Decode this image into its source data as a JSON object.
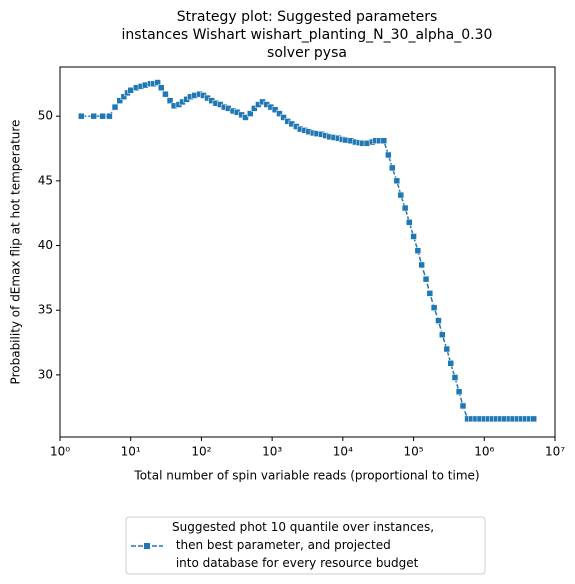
{
  "chart_data": {
    "type": "line",
    "title": [
      "Strategy plot: Suggested parameters",
      "instances Wishart wishart_planting_N_30_alpha_0.30",
      "solver pysa"
    ],
    "xlabel": "Total number of spin variable reads (proportional to time)",
    "ylabel": "Probability of dEmax flip at hot temperature",
    "log_x": true,
    "xlim": [
      1,
      10000000
    ],
    "ylim": [
      25.2,
      53.8
    ],
    "xticks": [
      {
        "value": 1,
        "label": "10⁰"
      },
      {
        "value": 10,
        "label": "10¹"
      },
      {
        "value": 100,
        "label": "10²"
      },
      {
        "value": 1000,
        "label": "10³"
      },
      {
        "value": 10000,
        "label": "10⁴"
      },
      {
        "value": 100000,
        "label": "10⁵"
      },
      {
        "value": 1000000,
        "label": "10⁶"
      },
      {
        "value": 10000000,
        "label": "10⁷"
      }
    ],
    "yticks": [
      30,
      35,
      40,
      45,
      50
    ],
    "legend": "bottom-outside",
    "x": [
      2,
      3,
      4,
      5,
      6,
      7,
      8,
      9,
      10,
      12,
      14,
      16,
      19,
      21,
      24,
      27,
      31,
      36,
      41,
      48,
      54,
      62,
      70,
      80,
      94,
      107,
      122,
      140,
      160,
      185,
      210,
      240,
      280,
      320,
      370,
      420,
      490,
      560,
      640,
      730,
      840,
      960,
      1100,
      1270,
      1450,
      1660,
      1900,
      2200,
      2500,
      2900,
      3300,
      3800,
      4300,
      5000,
      5700,
      6500,
      7500,
      8600,
      9800,
      11000,
      13000,
      15000,
      17000,
      19000,
      22000,
      26000,
      29000,
      33000,
      38000,
      44000,
      50000,
      58000,
      66000,
      76000,
      87000,
      100000,
      115000,
      130000,
      150000,
      170000,
      195000,
      225000,
      255000,
      295000,
      335000,
      385000,
      440000,
      500000,
      580000,
      660000,
      760000,
      870000,
      1000000,
      1150000,
      1300000,
      1500000,
      1700000,
      1950000,
      2250000,
      2550000,
      2950000,
      3350000,
      3850000,
      4400000,
      5000000
    ],
    "series": [
      {
        "name": "Suggested phot 10 quantile over instances,\n then best parameter, and projected\n into database for every resource budget",
        "color": "#1f77b4",
        "values": [
          50,
          50,
          50,
          50,
          50.7,
          51.2,
          51.5,
          51.8,
          52.0,
          52.2,
          52.3,
          52.4,
          52.5,
          52.5,
          52.6,
          52.2,
          51.7,
          51.2,
          50.8,
          50.9,
          51.1,
          51.3,
          51.5,
          51.6,
          51.7,
          51.6,
          51.4,
          51.2,
          51.0,
          50.9,
          50.7,
          50.6,
          50.4,
          50.3,
          50.1,
          49.9,
          50.2,
          50.6,
          50.9,
          51.1,
          50.9,
          50.7,
          50.5,
          50.2,
          49.9,
          49.6,
          49.4,
          49.2,
          49.0,
          48.9,
          48.8,
          48.7,
          48.65,
          48.6,
          48.5,
          48.4,
          48.35,
          48.3,
          48.2,
          48.15,
          48.1,
          48.0,
          47.95,
          47.9,
          47.9,
          48.0,
          48.1,
          48.1,
          48.1,
          47.0,
          46.0,
          45.0,
          43.9,
          42.9,
          41.8,
          40.7,
          39.6,
          38.5,
          37.4,
          36.3,
          35.2,
          34.2,
          33.1,
          32.0,
          30.9,
          29.8,
          28.7,
          27.6,
          26.6,
          26.6,
          26.6,
          26.6,
          26.6,
          26.6,
          26.6,
          26.6,
          26.6,
          26.6,
          26.6,
          26.6,
          26.6,
          26.6,
          26.6,
          26.6,
          26.6
        ]
      }
    ]
  }
}
